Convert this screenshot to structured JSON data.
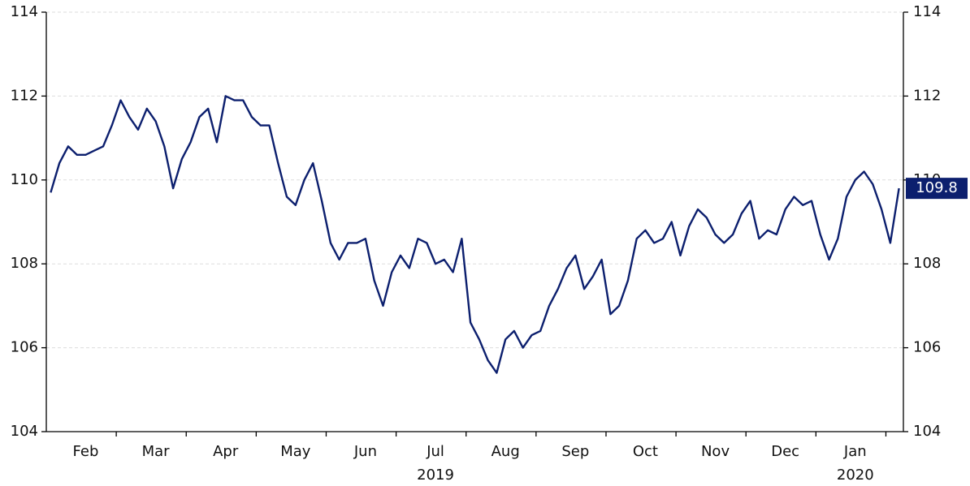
{
  "chart_data": {
    "type": "line",
    "categories": [
      null,
      null,
      null,
      null,
      "Feb",
      null,
      null,
      null,
      null,
      null,
      null,
      null,
      "Mar",
      null,
      null,
      null,
      null,
      null,
      null,
      null,
      "Apr",
      null,
      null,
      null,
      null,
      null,
      null,
      null,
      "May",
      null,
      null,
      null,
      null,
      null,
      null,
      null,
      "Jun",
      null,
      null,
      null,
      null,
      null,
      null,
      null,
      "Jul",
      null,
      null,
      null,
      null,
      null,
      null,
      null,
      "Aug",
      null,
      null,
      null,
      null,
      null,
      null,
      null,
      "Sep",
      null,
      null,
      null,
      null,
      null,
      null,
      null,
      "Oct",
      null,
      null,
      null,
      null,
      null,
      null,
      null,
      "Nov",
      null,
      null,
      null,
      null,
      null,
      null,
      null,
      "Dec",
      null,
      null,
      null,
      null,
      null,
      null,
      null,
      "Jan",
      null,
      null,
      null,
      null,
      null
    ],
    "year_labels": [
      null,
      null,
      null,
      null,
      null,
      null,
      null,
      null,
      null,
      null,
      null,
      null,
      null,
      null,
      null,
      null,
      null,
      null,
      null,
      null,
      null,
      null,
      null,
      null,
      null,
      null,
      null,
      null,
      null,
      null,
      null,
      null,
      null,
      null,
      null,
      null,
      null,
      null,
      null,
      null,
      null,
      null,
      null,
      null,
      "2019",
      null,
      null,
      null,
      null,
      null,
      null,
      null,
      null,
      null,
      null,
      null,
      null,
      null,
      null,
      null,
      null,
      null,
      null,
      null,
      null,
      null,
      null,
      null,
      null,
      null,
      null,
      null,
      null,
      null,
      null,
      null,
      null,
      null,
      null,
      null,
      null,
      null,
      null,
      null,
      null,
      null,
      null,
      null,
      null,
      null,
      null,
      null,
      "2020",
      null,
      null,
      null,
      null,
      null
    ],
    "series": [
      {
        "color": "#0c1f6e",
        "values": [
          109.7,
          110.4,
          110.8,
          110.6,
          110.6,
          110.7,
          110.8,
          111.3,
          111.9,
          111.5,
          111.2,
          111.7,
          111.4,
          110.8,
          109.8,
          110.5,
          110.9,
          111.5,
          111.7,
          110.9,
          112.0,
          111.9,
          111.9,
          111.5,
          111.3,
          111.3,
          110.4,
          109.6,
          109.4,
          110.0,
          110.4,
          109.5,
          108.5,
          108.1,
          108.5,
          108.5,
          108.6,
          107.6,
          107.0,
          107.8,
          108.2,
          107.9,
          108.6,
          108.5,
          108.0,
          108.1,
          107.8,
          108.6,
          106.6,
          106.2,
          105.7,
          105.4,
          106.2,
          106.4,
          106.0,
          106.3,
          106.4,
          107.0,
          107.4,
          107.9,
          108.2,
          107.4,
          107.7,
          108.1,
          106.8,
          107.0,
          107.6,
          108.6,
          108.8,
          108.5,
          108.6,
          109.0,
          108.2,
          108.9,
          109.3,
          109.1,
          108.7,
          108.5,
          108.7,
          109.2,
          109.5,
          108.6,
          108.8,
          108.7,
          109.3,
          109.6,
          109.4,
          109.5,
          108.7,
          108.1,
          108.6,
          109.6,
          110.0,
          110.2,
          109.9,
          109.3,
          108.5,
          109.8
        ]
      }
    ],
    "ylim": [
      104,
      114
    ],
    "yticks": [
      104,
      106,
      108,
      110,
      112,
      114
    ],
    "y2lim": [
      104,
      114
    ],
    "y2ticks": [
      104,
      106,
      108,
      110,
      112,
      114
    ],
    "grid": true
  }
}
